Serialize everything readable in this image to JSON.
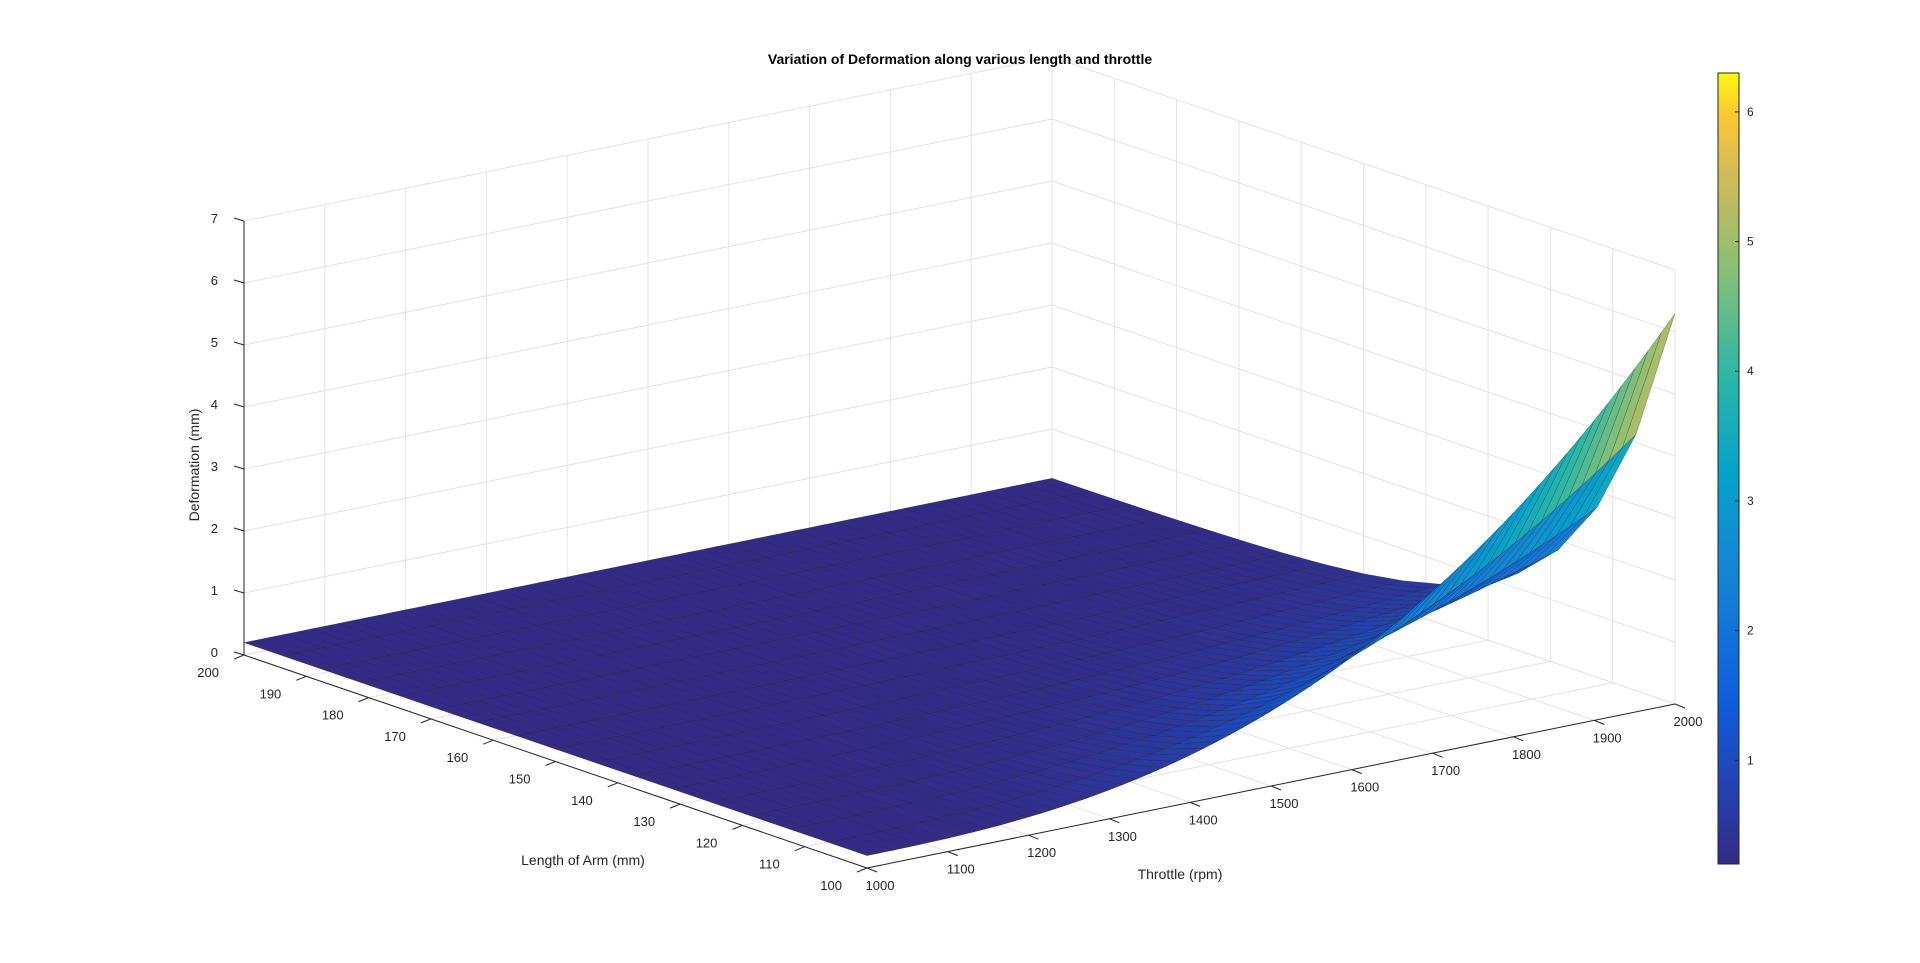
{
  "chart_data": {
    "type": "surface",
    "title": "Variation of Deformation along various length and throttle",
    "xlabel": "Throttle (rpm)",
    "ylabel": "Length of Arm (mm)",
    "zlabel": "Deformation (mm)",
    "xlim": [
      1000,
      2000
    ],
    "ylim": [
      100,
      200
    ],
    "zlim": [
      0,
      7
    ],
    "x_ticks": [
      "1000",
      "1100",
      "1200",
      "1300",
      "1400",
      "1500",
      "1600",
      "1700",
      "1800",
      "1900",
      "2000"
    ],
    "y_ticks": [
      "100",
      "110",
      "120",
      "130",
      "140",
      "150",
      "160",
      "170",
      "180",
      "190",
      "200"
    ],
    "z_ticks": [
      "0",
      "1",
      "2",
      "3",
      "4",
      "5",
      "6",
      "7"
    ],
    "grid": true,
    "colormap": "parula",
    "color_range": [
      0.2,
      6.3
    ],
    "colorbar_ticks": [
      "1",
      "2",
      "3",
      "4",
      "5",
      "6"
    ],
    "surface_samples": [
      {
        "throttle": 1000,
        "length": 100,
        "deformation": 0.2
      },
      {
        "throttle": 1000,
        "length": 200,
        "deformation": 0.2
      },
      {
        "throttle": 2000,
        "length": 200,
        "deformation": 0.3
      },
      {
        "throttle": 2000,
        "length": 100,
        "deformation": 6.3
      },
      {
        "throttle": 1500,
        "length": 100,
        "deformation": 1.6
      },
      {
        "throttle": 1800,
        "length": 100,
        "deformation": 4.1
      }
    ]
  }
}
